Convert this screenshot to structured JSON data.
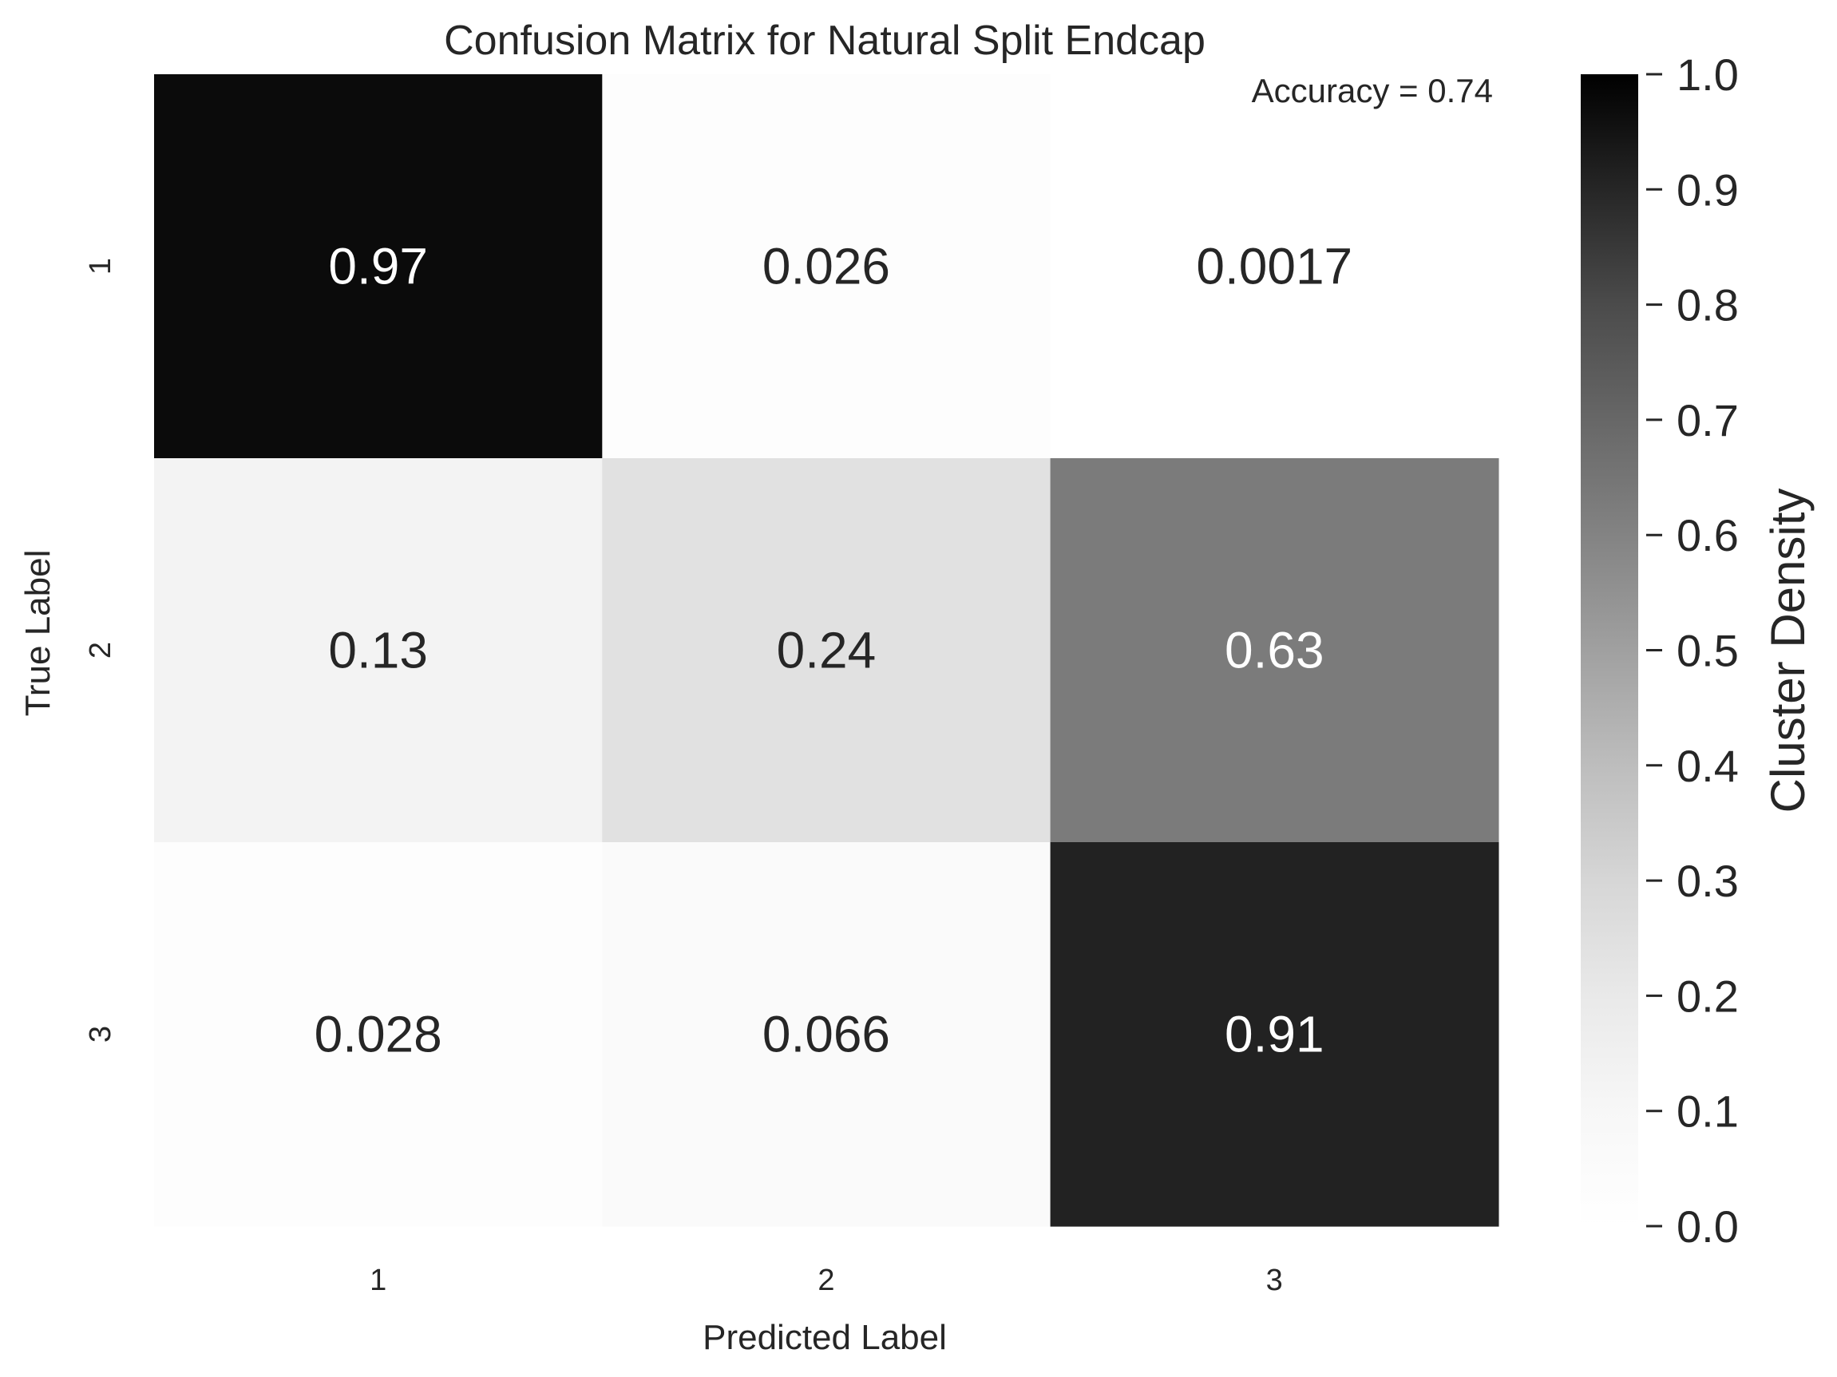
{
  "chart_data": {
    "type": "heatmap",
    "title": "Confusion Matrix for Natural Split Endcap",
    "annotation": "Accuracy = 0.74",
    "xlabel": "Predicted Label",
    "ylabel": "True Label",
    "x_categories": [
      "1",
      "2",
      "3"
    ],
    "y_categories": [
      "1",
      "2",
      "3"
    ],
    "values": [
      [
        0.97,
        0.026,
        0.0017
      ],
      [
        0.13,
        0.24,
        0.63
      ],
      [
        0.028,
        0.066,
        0.91
      ]
    ],
    "value_labels": [
      [
        "0.97",
        "0.026",
        "0.0017"
      ],
      [
        "0.13",
        "0.24",
        "0.63"
      ],
      [
        "0.028",
        "0.066",
        "0.91"
      ]
    ],
    "colorbar": {
      "label": "Cluster Density",
      "range": [
        0.0,
        1.0
      ],
      "ticks": [
        "0.0",
        "0.1",
        "0.2",
        "0.3",
        "0.4",
        "0.5",
        "0.6",
        "0.7",
        "0.8",
        "0.9",
        "1.0"
      ],
      "colormap": "Greys",
      "low_color": "#ffffff",
      "high_color": "#000000"
    },
    "grid": false
  }
}
